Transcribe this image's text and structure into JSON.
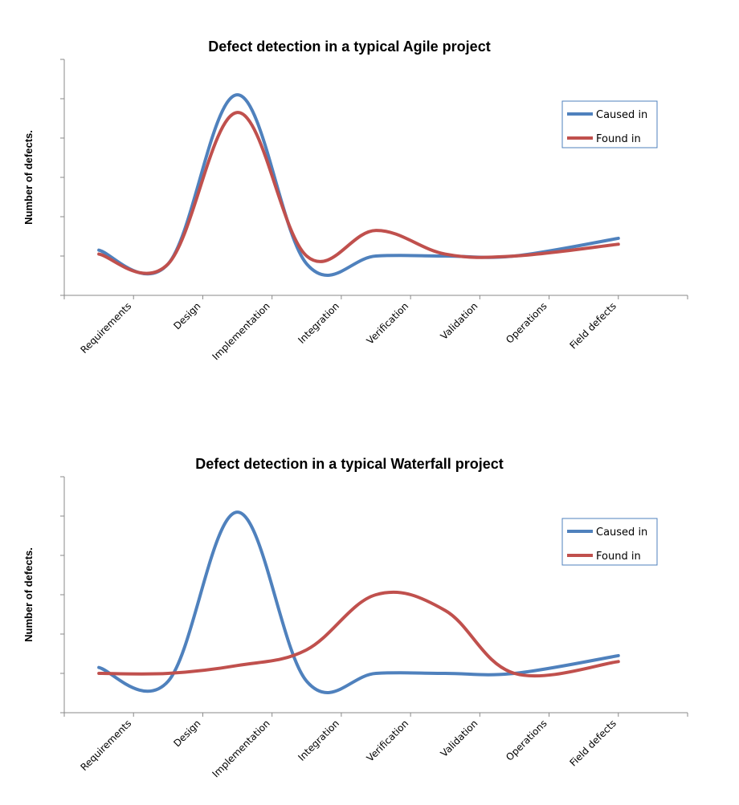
{
  "chart_data": [
    {
      "type": "line",
      "title": "Defect detection in a typical Agile project",
      "xlabel": "",
      "ylabel": "Number of defects.",
      "categories": [
        "Requirements",
        "Design",
        "Implementation",
        "Integration",
        "Verification",
        "Validation",
        "Operations",
        "Field defects"
      ],
      "ylim": [
        0,
        6
      ],
      "y_tick_labels_shown": false,
      "grid": false,
      "legend": "right",
      "series": [
        {
          "name": "Caused in",
          "color": "#4f81bd",
          "values": [
            1.15,
            0.8,
            5.1,
            0.8,
            1.0,
            1.0,
            1.0,
            1.45
          ]
        },
        {
          "name": "Found in",
          "color": "#c0504d",
          "values": [
            1.05,
            0.8,
            4.65,
            1.0,
            1.65,
            1.05,
            1.0,
            1.3
          ]
        }
      ]
    },
    {
      "type": "line",
      "title": "Defect detection in a typical Waterfall project",
      "xlabel": "",
      "ylabel": "Number of defects.",
      "categories": [
        "Requirements",
        "Design",
        "Implementation",
        "Integration",
        "Verification",
        "Validation",
        "Operations",
        "Field defects"
      ],
      "ylim": [
        0,
        6
      ],
      "y_tick_labels_shown": false,
      "grid": false,
      "legend": "right",
      "series": [
        {
          "name": "Caused in",
          "color": "#4f81bd",
          "values": [
            1.15,
            0.8,
            5.1,
            0.8,
            1.0,
            1.0,
            1.0,
            1.45
          ]
        },
        {
          "name": "Found in",
          "color": "#c0504d",
          "values": [
            1.0,
            1.0,
            1.2,
            1.6,
            3.0,
            2.6,
            1.0,
            1.3
          ]
        }
      ]
    }
  ]
}
